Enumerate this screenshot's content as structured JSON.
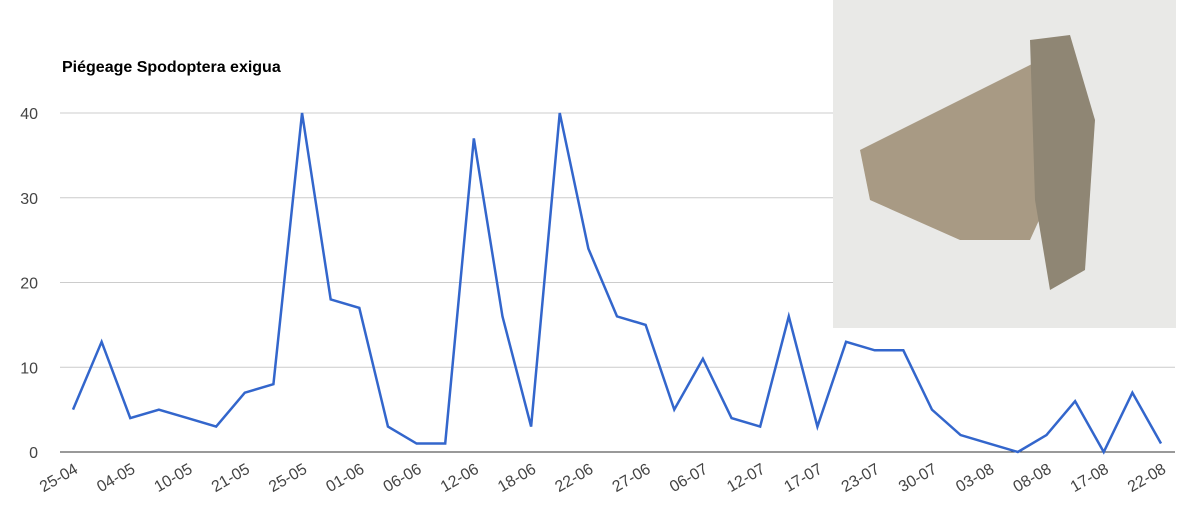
{
  "chart_data": {
    "type": "line",
    "title": "Piégeage Spodoptera exigua",
    "categories": [
      "25-04",
      null,
      "04-05",
      null,
      "10-05",
      null,
      "21-05",
      null,
      "25-05",
      null,
      "01-06",
      null,
      "06-06",
      null,
      "12-06",
      null,
      "18-06",
      null,
      "22-06",
      null,
      "27-06",
      null,
      "06-07",
      null,
      "12-07",
      null,
      "17-07",
      null,
      "23-07",
      null,
      "30-07",
      null,
      "03-08",
      null,
      "08-08",
      null,
      "17-08",
      null,
      "22-08"
    ],
    "values": [
      5,
      13,
      4,
      5,
      4,
      3,
      7,
      8,
      40,
      18,
      17,
      3,
      1,
      1,
      37,
      16,
      3,
      40,
      24,
      16,
      15,
      5,
      11,
      4,
      3,
      16,
      3,
      13,
      12,
      12,
      5,
      2,
      1,
      0,
      2,
      6,
      0,
      7,
      1
    ],
    "color": "#3366cc",
    "ylim": [
      0,
      40
    ],
    "yticks": [
      0,
      10,
      20,
      30,
      40
    ],
    "grid": true
  }
}
